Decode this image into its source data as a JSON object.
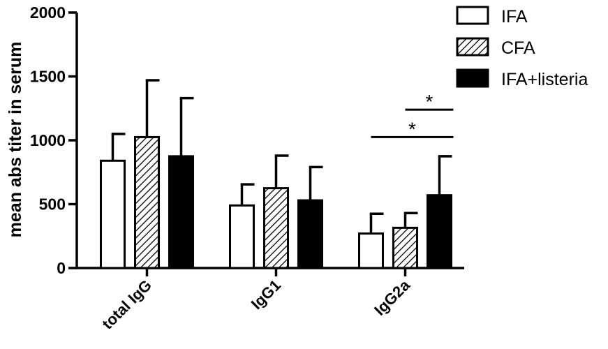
{
  "chart_data": {
    "type": "bar",
    "title": "",
    "ylabel": "mean abs titer in serum",
    "xlabel": "",
    "ylim": [
      0,
      2000
    ],
    "yticks": [
      0,
      500,
      1000,
      1500,
      2000
    ],
    "categories": [
      "total IgG",
      "IgG1",
      "IgG2a"
    ],
    "series": [
      {
        "name": "IFA",
        "fill": "white",
        "values": [
          840,
          490,
          270
        ],
        "errors": [
          210,
          165,
          155
        ]
      },
      {
        "name": "CFA",
        "fill": "hatched",
        "values": [
          1025,
          625,
          315
        ],
        "errors": [
          445,
          255,
          115
        ]
      },
      {
        "name": "IFA+listeria",
        "fill": "black",
        "values": [
          875,
          530,
          570
        ],
        "errors": [
          455,
          260,
          305
        ]
      }
    ],
    "legend_position": "top-right",
    "significance": [
      {
        "label": "*",
        "from_series": "CFA",
        "to_series": "IFA+listeria",
        "category": "IgG2a"
      },
      {
        "label": "*",
        "from_series": "IFA",
        "to_series": "IFA+listeria",
        "category": "IgG2a"
      }
    ]
  },
  "colors": {
    "ink": "#000000",
    "background": "#ffffff"
  }
}
